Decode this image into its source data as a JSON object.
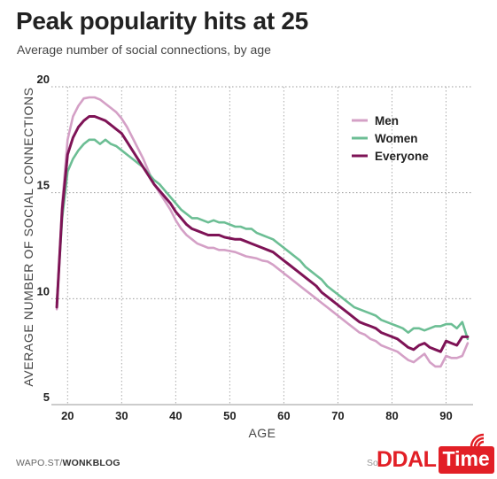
{
  "title": "Peak popularity hits at 25",
  "subtitle": "Average number of social connections, by age",
  "footer": {
    "source_prefix": "WAPO.ST/",
    "source_bold": "WONKBLOG",
    "source_right": "So"
  },
  "watermark": {
    "part1": "DDAL",
    "part2": "Time",
    "color": "#e21f26"
  },
  "chart_data": {
    "type": "line",
    "title": "Peak popularity hits at 25",
    "subtitle": "Average number of social connections, by age",
    "xlabel": "AGE",
    "ylabel": "AVERAGE NUMBER OF SOCIAL CONNECTIONS",
    "xlim": [
      17,
      95
    ],
    "ylim": [
      5,
      20
    ],
    "xticks": [
      20,
      30,
      40,
      50,
      60,
      70,
      80,
      90
    ],
    "yticks": [
      5,
      10,
      15,
      20
    ],
    "grid": true,
    "legend_position": "top-right",
    "series": [
      {
        "name": "Men",
        "color": "#d4a0c6",
        "x": [
          18,
          19,
          20,
          21,
          22,
          23,
          24,
          25,
          26,
          27,
          28,
          29,
          30,
          31,
          32,
          33,
          34,
          35,
          36,
          37,
          38,
          39,
          40,
          41,
          42,
          43,
          44,
          45,
          46,
          47,
          48,
          49,
          50,
          51,
          52,
          53,
          54,
          55,
          56,
          57,
          58,
          59,
          60,
          61,
          62,
          63,
          64,
          65,
          66,
          67,
          68,
          69,
          70,
          71,
          72,
          73,
          74,
          75,
          76,
          77,
          78,
          79,
          80,
          81,
          82,
          83,
          84,
          85,
          86,
          87,
          88,
          89,
          90,
          91,
          92,
          93,
          94
        ],
        "values": [
          9.5,
          14.5,
          17.5,
          18.6,
          19.1,
          19.45,
          19.5,
          19.5,
          19.4,
          19.2,
          19.0,
          18.8,
          18.5,
          18.1,
          17.6,
          17.1,
          16.6,
          16.0,
          15.4,
          15.0,
          14.6,
          14.2,
          13.7,
          13.3,
          13.0,
          12.8,
          12.6,
          12.5,
          12.4,
          12.4,
          12.3,
          12.3,
          12.25,
          12.2,
          12.1,
          12.0,
          11.95,
          11.9,
          11.8,
          11.75,
          11.6,
          11.4,
          11.2,
          11.0,
          10.8,
          10.6,
          10.4,
          10.2,
          10.0,
          9.8,
          9.6,
          9.4,
          9.2,
          9.0,
          8.8,
          8.6,
          8.4,
          8.3,
          8.1,
          8.0,
          7.8,
          7.7,
          7.6,
          7.5,
          7.3,
          7.1,
          7.0,
          7.2,
          7.4,
          7.0,
          6.8,
          6.8,
          7.3,
          7.2,
          7.2,
          7.3,
          7.9
        ]
      },
      {
        "name": "Women",
        "color": "#6cbe94",
        "x": [
          18,
          19,
          20,
          21,
          22,
          23,
          24,
          25,
          26,
          27,
          28,
          29,
          30,
          31,
          32,
          33,
          34,
          35,
          36,
          37,
          38,
          39,
          40,
          41,
          42,
          43,
          44,
          45,
          46,
          47,
          48,
          49,
          50,
          51,
          52,
          53,
          54,
          55,
          56,
          57,
          58,
          59,
          60,
          61,
          62,
          63,
          64,
          65,
          66,
          67,
          68,
          69,
          70,
          71,
          72,
          73,
          74,
          75,
          76,
          77,
          78,
          79,
          80,
          81,
          82,
          83,
          84,
          85,
          86,
          87,
          88,
          89,
          90,
          91,
          92,
          93,
          94
        ],
        "values": [
          9.8,
          13.8,
          16.0,
          16.6,
          17.0,
          17.3,
          17.5,
          17.5,
          17.3,
          17.5,
          17.3,
          17.2,
          17.0,
          16.8,
          16.6,
          16.4,
          16.2,
          15.9,
          15.6,
          15.4,
          15.1,
          14.8,
          14.5,
          14.2,
          14.0,
          13.8,
          13.8,
          13.7,
          13.6,
          13.7,
          13.6,
          13.6,
          13.5,
          13.4,
          13.4,
          13.3,
          13.3,
          13.1,
          13.0,
          12.9,
          12.8,
          12.6,
          12.4,
          12.2,
          12.0,
          11.8,
          11.5,
          11.3,
          11.1,
          10.9,
          10.6,
          10.4,
          10.2,
          10.0,
          9.8,
          9.6,
          9.5,
          9.4,
          9.3,
          9.2,
          9.0,
          8.9,
          8.8,
          8.7,
          8.6,
          8.4,
          8.6,
          8.6,
          8.5,
          8.6,
          8.7,
          8.7,
          8.8,
          8.8,
          8.6,
          8.9,
          8.1
        ]
      },
      {
        "name": "Everyone",
        "color": "#7e1356",
        "x": [
          18,
          19,
          20,
          21,
          22,
          23,
          24,
          25,
          26,
          27,
          28,
          29,
          30,
          31,
          32,
          33,
          34,
          35,
          36,
          37,
          38,
          39,
          40,
          41,
          42,
          43,
          44,
          45,
          46,
          47,
          48,
          49,
          50,
          51,
          52,
          53,
          54,
          55,
          56,
          57,
          58,
          59,
          60,
          61,
          62,
          63,
          64,
          65,
          66,
          67,
          68,
          69,
          70,
          71,
          72,
          73,
          74,
          75,
          76,
          77,
          78,
          79,
          80,
          81,
          82,
          83,
          84,
          85,
          86,
          87,
          88,
          89,
          90,
          91,
          92,
          93,
          94
        ],
        "values": [
          9.6,
          14.2,
          16.8,
          17.6,
          18.1,
          18.4,
          18.6,
          18.6,
          18.5,
          18.4,
          18.2,
          18.0,
          17.8,
          17.4,
          17.0,
          16.6,
          16.2,
          15.8,
          15.4,
          15.1,
          14.8,
          14.5,
          14.1,
          13.8,
          13.5,
          13.3,
          13.2,
          13.1,
          13.0,
          13.0,
          13.0,
          12.9,
          12.85,
          12.8,
          12.8,
          12.7,
          12.6,
          12.5,
          12.4,
          12.3,
          12.2,
          12.0,
          11.8,
          11.6,
          11.4,
          11.2,
          11.0,
          10.8,
          10.6,
          10.3,
          10.1,
          9.9,
          9.7,
          9.5,
          9.3,
          9.1,
          8.9,
          8.8,
          8.7,
          8.6,
          8.4,
          8.3,
          8.2,
          8.1,
          7.9,
          7.7,
          7.6,
          7.8,
          7.9,
          7.7,
          7.6,
          7.5,
          8.0,
          7.9,
          7.8,
          8.2,
          8.2
        ]
      }
    ]
  }
}
